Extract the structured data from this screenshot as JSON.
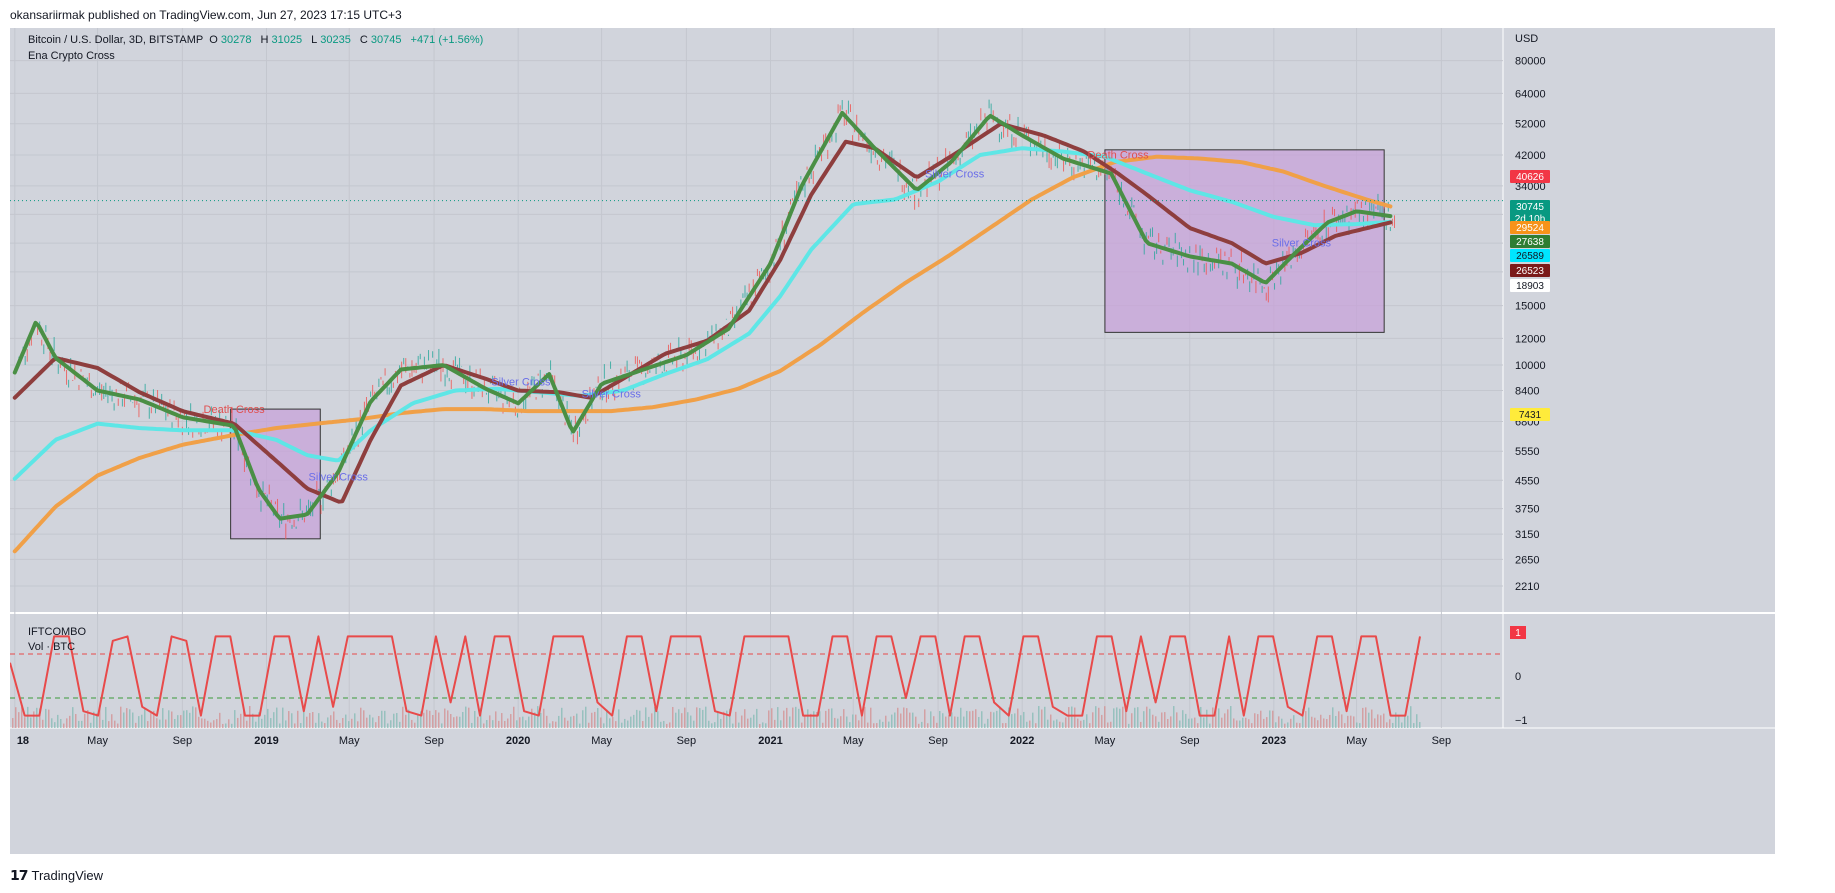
{
  "header": {
    "publisher": "okansariirmak published on TradingView.com, Jun 27, 2023 17:15 UTC+3"
  },
  "legend": {
    "symbol": "Bitcoin / U.S. Dollar, 3D, BITSTAMP",
    "o_label": "O",
    "o": "30278",
    "h_label": "H",
    "h": "31025",
    "l_label": "L",
    "l": "30235",
    "c_label": "C",
    "c": "30745",
    "change": "+471 (+1.56%)",
    "indicator": "Ena Crypto Cross"
  },
  "pane2": {
    "indicator": "IFTCOMBO",
    "volume": "Vol · BTC"
  },
  "footer": {
    "logo": "TradingView"
  },
  "colors": {
    "background": "#d1d4dc",
    "green_ma": "#4a8f45",
    "brown_ma": "#8e3e3e",
    "cyan_ma": "#5ee6e6",
    "orange_ma": "#f0a048",
    "box": "#c7a0d8",
    "ift_line": "#e84a4a"
  },
  "chart_data": [
    {
      "type": "line",
      "scale": "log",
      "y_unit": "USD",
      "x_axis_labels": [
        "18",
        "May",
        "Sep",
        "2019",
        "May",
        "Sep",
        "2020",
        "May",
        "Sep",
        "2021",
        "May",
        "Sep",
        "2022",
        "May",
        "Sep",
        "2023",
        "May",
        "Sep"
      ],
      "x_axis_dates": [
        "2018-01-01",
        "2018-05-01",
        "2018-09-01",
        "2019-01-01",
        "2019-05-01",
        "2019-09-01",
        "2020-01-01",
        "2020-05-01",
        "2020-09-01",
        "2021-01-01",
        "2021-05-01",
        "2021-09-01",
        "2022-01-01",
        "2022-05-01",
        "2022-09-01",
        "2023-01-01",
        "2023-05-01",
        "2023-09-01"
      ],
      "y_ticks": [
        80000,
        64000,
        52000,
        42000,
        34000,
        28000,
        23000,
        18903,
        15000,
        12000,
        10000,
        8400,
        6800,
        5550,
        4550,
        3750,
        3150,
        2650,
        2210
      ],
      "y_tick_labels": [
        "80000",
        "64000",
        "52000",
        "42000",
        "34000",
        "28000",
        "23000",
        "18903",
        "15000",
        "12000",
        "10000",
        "8400",
        "6800",
        "5550",
        "4550",
        "3750",
        "3150",
        "2650",
        "2210"
      ],
      "price_labels": [
        {
          "value": "40626",
          "color": "#f23645"
        },
        {
          "value": "30745",
          "sub": "2d 10h",
          "color": "#089981"
        },
        {
          "value": "29524",
          "color": "#f7931a"
        },
        {
          "value": "27638",
          "color": "#2e7d32"
        },
        {
          "value": "26589",
          "color": "#00e5ff"
        },
        {
          "value": "26523",
          "color": "#7b1a1a"
        },
        {
          "value": "18903",
          "color": "#ffffff"
        },
        {
          "value": "7431",
          "color": "#ffeb3b"
        }
      ],
      "current_price": 30745,
      "series": [
        {
          "color": "#4a8f45",
          "x": [
            "2018-01-01",
            "2018-02-01",
            "2018-03-01",
            "2018-05-01",
            "2018-07-01",
            "2018-09-01",
            "2018-11-15",
            "2018-12-20",
            "2019-01-20",
            "2019-03-01",
            "2019-04-15",
            "2019-06-01",
            "2019-07-15",
            "2019-09-15",
            "2019-11-15",
            "2020-01-01",
            "2020-02-15",
            "2020-03-20",
            "2020-05-01",
            "2020-07-01",
            "2020-09-01",
            "2020-11-01",
            "2021-01-01",
            "2021-02-15",
            "2021-04-15",
            "2021-06-01",
            "2021-08-01",
            "2021-09-20",
            "2021-11-15",
            "2022-01-01",
            "2022-03-01",
            "2022-05-10",
            "2022-07-01",
            "2022-09-01",
            "2022-11-01",
            "2022-12-20",
            "2023-02-01",
            "2023-03-20",
            "2023-05-01",
            "2023-06-20"
          ],
          "y": [
            9500,
            13500,
            10500,
            8400,
            7900,
            7000,
            6600,
            4300,
            3500,
            3600,
            4800,
            7800,
            9700,
            10000,
            8500,
            7700,
            9400,
            6300,
            8800,
            9700,
            10700,
            12800,
            20000,
            34000,
            56000,
            44000,
            33000,
            40000,
            55000,
            48000,
            41000,
            37000,
            23000,
            21000,
            20000,
            17500,
            21500,
            26500,
            28600,
            27638
          ]
        },
        {
          "color": "#8e3e3e",
          "x": [
            "2018-01-01",
            "2018-03-01",
            "2018-05-01",
            "2018-07-01",
            "2018-09-01",
            "2018-11-15",
            "2019-01-15",
            "2019-03-01",
            "2019-04-20",
            "2019-06-01",
            "2019-07-15",
            "2019-09-15",
            "2019-11-15",
            "2020-01-01",
            "2020-03-01",
            "2020-04-15",
            "2020-06-01",
            "2020-08-01",
            "2020-10-01",
            "2020-12-01",
            "2021-01-15",
            "2021-03-01",
            "2021-04-20",
            "2021-06-01",
            "2021-08-01",
            "2021-10-01",
            "2021-12-01",
            "2022-02-01",
            "2022-04-01",
            "2022-05-20",
            "2022-07-01",
            "2022-09-01",
            "2022-11-01",
            "2022-12-20",
            "2023-02-10",
            "2023-04-01",
            "2023-06-20"
          ],
          "y": [
            8000,
            10500,
            9800,
            8300,
            7300,
            6700,
            5200,
            4300,
            3900,
            6000,
            8700,
            10000,
            9100,
            8400,
            8300,
            8000,
            9100,
            10800,
            11800,
            14500,
            20500,
            32000,
            46000,
            44000,
            36000,
            43000,
            52000,
            48000,
            43000,
            37000,
            32000,
            25500,
            23000,
            20000,
            21500,
            24200,
            26523
          ]
        },
        {
          "color": "#5ee6e6",
          "x": [
            "2018-01-01",
            "2018-03-01",
            "2018-05-01",
            "2018-07-01",
            "2018-09-01",
            "2018-11-15",
            "2019-01-15",
            "2019-03-01",
            "2019-04-15",
            "2019-06-01",
            "2019-08-01",
            "2019-10-01",
            "2019-12-01",
            "2020-02-01",
            "2020-04-01",
            "2020-06-01",
            "2020-08-01",
            "2020-10-01",
            "2020-12-01",
            "2021-01-15",
            "2021-03-01",
            "2021-05-01",
            "2021-07-01",
            "2021-09-01",
            "2021-11-01",
            "2022-01-01",
            "2022-03-01",
            "2022-05-01",
            "2022-07-01",
            "2022-09-01",
            "2022-11-01",
            "2023-01-01",
            "2023-03-01",
            "2023-05-01",
            "2023-06-20"
          ],
          "y": [
            4600,
            6000,
            6700,
            6500,
            6400,
            6400,
            6000,
            5400,
            5200,
            6400,
            7700,
            8400,
            8500,
            8300,
            8100,
            8400,
            9400,
            10400,
            12400,
            16000,
            22000,
            30000,
            31000,
            35000,
            42000,
            44000,
            43000,
            41500,
            37000,
            33000,
            30500,
            27500,
            26000,
            26200,
            26589
          ]
        },
        {
          "color": "#f0a048",
          "x": [
            "2018-01-01",
            "2018-03-01",
            "2018-05-01",
            "2018-07-01",
            "2018-09-01",
            "2018-11-15",
            "2019-01-15",
            "2019-03-15",
            "2019-05-15",
            "2019-07-15",
            "2019-09-15",
            "2019-11-15",
            "2020-01-15",
            "2020-03-15",
            "2020-05-15",
            "2020-07-15",
            "2020-09-15",
            "2020-11-15",
            "2021-01-15",
            "2021-03-15",
            "2021-05-15",
            "2021-07-15",
            "2021-09-15",
            "2021-11-15",
            "2022-01-15",
            "2022-03-15",
            "2022-05-15",
            "2022-07-15",
            "2022-09-15",
            "2022-11-15",
            "2023-01-15",
            "2023-03-15",
            "2023-05-15",
            "2023-06-20"
          ],
          "y": [
            2800,
            3800,
            4700,
            5300,
            5800,
            6200,
            6500,
            6700,
            6900,
            7200,
            7400,
            7400,
            7300,
            7300,
            7300,
            7500,
            7900,
            8500,
            9600,
            11500,
            14300,
            17500,
            21000,
            25500,
            31000,
            36000,
            40000,
            41500,
            41000,
            40000,
            37500,
            34000,
            31000,
            29524
          ]
        }
      ],
      "boxes": [
        {
          "x0": "2018-11-10",
          "x1": "2019-03-20",
          "y0": 7400,
          "y1": 3050
        },
        {
          "x0": "2022-05-01",
          "x1": "2023-06-10",
          "y0": 43500,
          "y1": 12500
        }
      ],
      "annotations": [
        {
          "text": "Death Cross",
          "x": "2018-11-15",
          "y": 7200,
          "color": "#e05050"
        },
        {
          "text": "Silver Cross",
          "x": "2019-04-15",
          "y": 4550,
          "color": "#6a6ee8"
        },
        {
          "text": "Silver Cross",
          "x": "2020-01-05",
          "y": 8700,
          "color": "#6a6ee8"
        },
        {
          "text": "Silver Cross",
          "x": "2020-05-15",
          "y": 8000,
          "color": "#6a6ee8"
        },
        {
          "text": "Silver Cross",
          "x": "2021-09-25",
          "y": 36000,
          "color": "#6a6ee8"
        },
        {
          "text": "Death Cross",
          "x": "2022-05-20",
          "y": 41000,
          "color": "#e05050"
        },
        {
          "text": "Silver Cross",
          "x": "2023-02-10",
          "y": 22500,
          "color": "#6a6ee8"
        }
      ]
    },
    {
      "type": "line",
      "y_tick_labels": [
        "1",
        "0",
        "−1"
      ],
      "ylim": [
        -1,
        1
      ],
      "series": [
        {
          "color": "#e84a4a",
          "values": [
            0.3,
            -0.9,
            -0.9,
            0.9,
            0.9,
            -0.8,
            -0.9,
            0.8,
            0.9,
            -0.7,
            -0.9,
            0.9,
            0.8,
            -0.9,
            0.9,
            0.9,
            -0.9,
            -0.9,
            0.9,
            0.9,
            -0.8,
            0.9,
            -0.7,
            0.9,
            0.9,
            0.9,
            0.9,
            -0.8,
            -0.9,
            0.9,
            -0.6,
            0.9,
            -0.9,
            0.9,
            0.9,
            -0.8,
            -0.9,
            0.9,
            0.9,
            0.9,
            -0.6,
            -0.9,
            0.9,
            0.9,
            -0.8,
            0.9,
            0.9,
            0.9,
            -0.8,
            -0.9,
            0.9,
            0.9,
            0.9,
            0.9,
            -0.9,
            -0.9,
            0.9,
            0.9,
            -0.9,
            0.9,
            0.9,
            -0.5,
            0.9,
            0.9,
            -0.9,
            0.9,
            0.9,
            -0.6,
            -0.9,
            0.9,
            0.9,
            -0.7,
            -0.9,
            -0.9,
            0.9,
            0.9,
            -0.8,
            0.9,
            -0.6,
            0.9,
            0.9,
            -0.9,
            -0.9,
            0.9,
            -0.9,
            0.9,
            0.9,
            -0.7,
            -0.9,
            0.9,
            0.9,
            -0.8,
            0.9,
            0.9,
            -0.9,
            -0.9,
            0.9
          ]
        }
      ],
      "hlines": [
        {
          "value": 0.5,
          "color": "#e84a4a"
        },
        {
          "value": -0.5,
          "color": "#3a9a3a"
        }
      ],
      "last_value_label": "1"
    }
  ]
}
